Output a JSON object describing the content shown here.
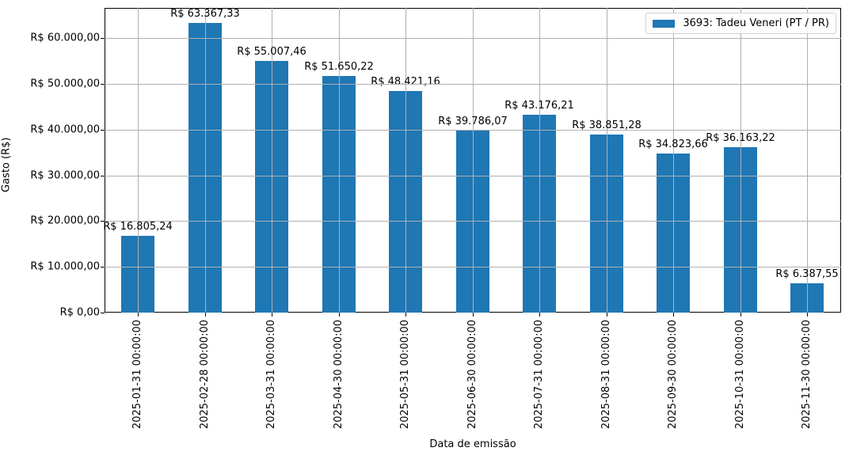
{
  "chart_data": {
    "type": "bar",
    "title": "",
    "xlabel": "Data de emissão",
    "ylabel": "Gasto (R$)",
    "ylim": [
      0,
      66573
    ],
    "grid": true,
    "legend_position": "upper right",
    "categories": [
      "2025-01-31 00:00:00",
      "2025-02-28 00:00:00",
      "2025-03-31 00:00:00",
      "2025-04-30 00:00:00",
      "2025-05-31 00:00:00",
      "2025-06-30 00:00:00",
      "2025-07-31 00:00:00",
      "2025-08-31 00:00:00",
      "2025-09-30 00:00:00",
      "2025-10-31 00:00:00",
      "2025-11-30 00:00:00"
    ],
    "series": [
      {
        "name": "3693: Tadeu Veneri (PT / PR)",
        "color": "#1f77b4",
        "values": [
          16805.24,
          63367.33,
          55007.46,
          51650.22,
          48421.16,
          39786.07,
          43176.21,
          38851.28,
          34823.66,
          36163.22,
          6387.55
        ],
        "labels": [
          "R$ 16.805,24",
          "R$ 63.367,33",
          "R$ 55.007,46",
          "R$ 51.650,22",
          "R$ 48.421,16",
          "R$ 39.786,07",
          "R$ 43.176,21",
          "R$ 38.851,28",
          "R$ 34.823,66",
          "R$ 36.163,22",
          "R$ 6.387,55"
        ]
      }
    ],
    "yticks": [
      0,
      10000,
      20000,
      30000,
      40000,
      50000,
      60000
    ],
    "ytick_labels": [
      "R$ 0,00",
      "R$ 10.000,00",
      "R$ 20.000,00",
      "R$ 30.000,00",
      "R$ 40.000,00",
      "R$ 50.000,00",
      "R$ 60.000,00"
    ]
  }
}
